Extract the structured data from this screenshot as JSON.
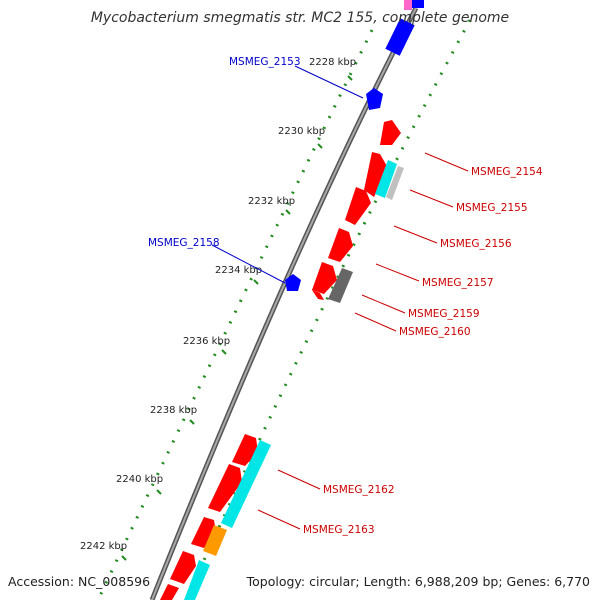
{
  "title": "Mycobacterium smegmatis str. MC2 155, complete genome",
  "footer": {
    "accession": "Accession: NC_008596",
    "details": "Topology: circular; Length: 6,988,209 bp; Genes: 6,770"
  },
  "colors": {
    "backbone": "#808080",
    "cds": "#ff0000",
    "trna": "#0000ff",
    "other": "#00e5e5",
    "misc": "#888888",
    "orange": "#ff9900",
    "pink": "#ff66cc",
    "label_minus": "#0000cc",
    "label_plus": "#cc0000",
    "tick": "#228b22"
  },
  "ticks": [
    {
      "label": "2228 kbp"
    },
    {
      "label": "2230 kbp"
    },
    {
      "label": "2232 kbp"
    },
    {
      "label": "2234 kbp"
    },
    {
      "label": "2236 kbp"
    },
    {
      "label": "2238 kbp"
    },
    {
      "label": "2240 kbp"
    },
    {
      "label": "2242 kbp"
    }
  ],
  "gene_labels": [
    {
      "text": "MSMEG_2153",
      "strand": "minus"
    },
    {
      "text": "MSMEG_2158",
      "strand": "minus"
    },
    {
      "text": "MSMEG_2154",
      "strand": "plus"
    },
    {
      "text": "MSMEG_2155",
      "strand": "plus"
    },
    {
      "text": "MSMEG_2156",
      "strand": "plus"
    },
    {
      "text": "MSMEG_2157",
      "strand": "plus"
    },
    {
      "text": "MSMEG_2159",
      "strand": "plus"
    },
    {
      "text": "MSMEG_2160",
      "strand": "plus"
    },
    {
      "text": "MSMEG_2162",
      "strand": "plus"
    },
    {
      "text": "MSMEG_2163",
      "strand": "plus"
    }
  ]
}
